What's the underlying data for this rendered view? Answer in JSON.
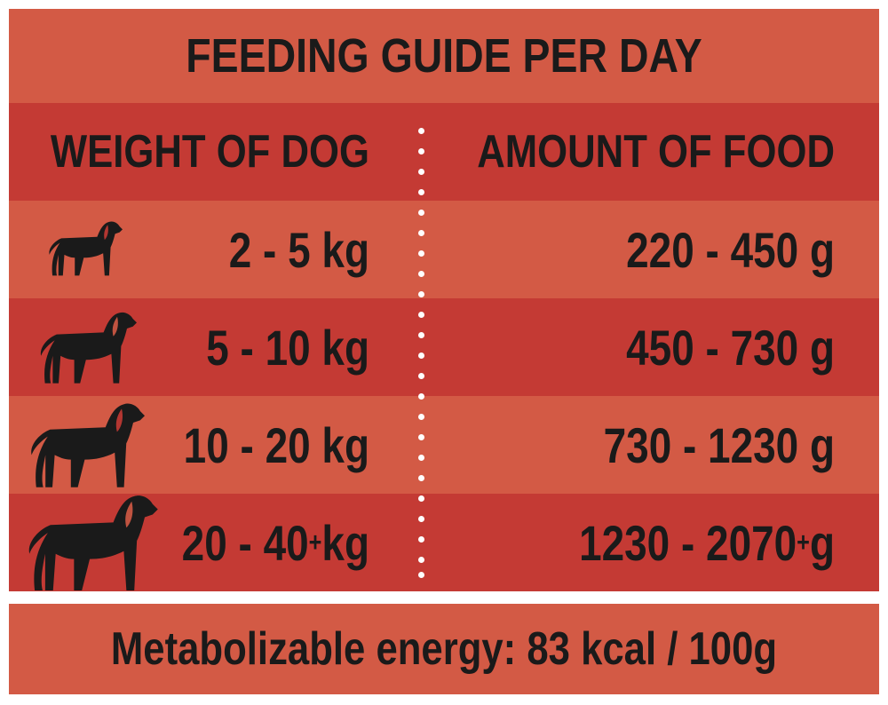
{
  "title": "FEEDING GUIDE PER DAY",
  "columns": {
    "weight": "WEIGHT OF DOG",
    "amount": "AMOUNT OF FOOD"
  },
  "rows": [
    {
      "weight": "2 - 5 kg",
      "weight_sup": "",
      "weight_suffix": "",
      "amount": "220 - 450 g",
      "amount_sup": "",
      "amount_suffix": ""
    },
    {
      "weight": "5 - 10 kg",
      "weight_sup": "",
      "weight_suffix": "",
      "amount": "450 - 730 g",
      "amount_sup": "",
      "amount_suffix": ""
    },
    {
      "weight": "10 - 20 kg",
      "weight_sup": "",
      "weight_suffix": "",
      "amount": "730 - 1230 g",
      "amount_sup": "",
      "amount_suffix": ""
    },
    {
      "weight": "20 - 40",
      "weight_sup": "+",
      "weight_suffix": " kg",
      "amount": "1230 - 2070",
      "amount_sup": "+",
      "amount_suffix": " g"
    }
  ],
  "icons": [
    "dog-small-icon",
    "dog-medium-icon",
    "dog-large-icon",
    "dog-xlarge-icon"
  ],
  "footer": "Metabolizable energy: 83 kcal / 100g",
  "colors": {
    "light_band": "#d35a45",
    "dark_band": "#c43a34",
    "text": "#1a1a1a",
    "divider_dots": "#ffffff"
  }
}
